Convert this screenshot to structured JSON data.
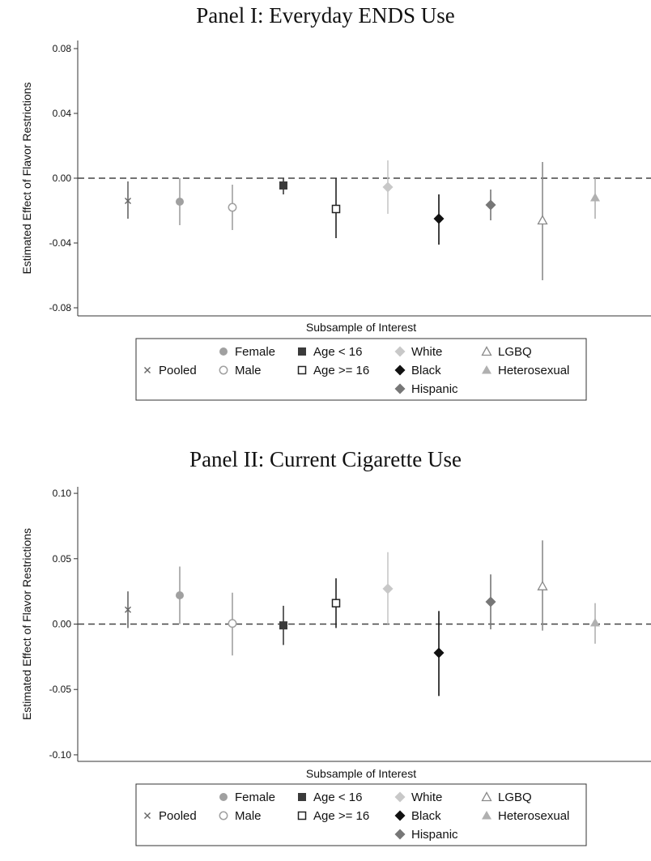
{
  "chart_data": [
    {
      "type": "scatter",
      "title": "Panel I: Everyday ENDS Use",
      "xlabel": "Subsample of Interest",
      "ylabel": "Estimated Effect of Flavor Restrictions",
      "ylim": [
        -0.085,
        0.085
      ],
      "yticks": [
        0.08,
        0.04,
        0.0,
        -0.04,
        -0.08
      ],
      "ytick_labels": [
        "0.08",
        "0.04",
        "0.00",
        "-0.04",
        "-0.08"
      ],
      "reference_line": 0,
      "grid": false,
      "legend_position": "bottom",
      "series": [
        {
          "name": "Pooled",
          "marker": "x",
          "color": "#666666",
          "estimate": -0.014,
          "ci": [
            -0.025,
            -0.002
          ]
        },
        {
          "name": "Female",
          "marker": "circle-filled",
          "color": "#a0a0a0",
          "estimate": -0.0145,
          "ci": [
            -0.029,
            0.0
          ]
        },
        {
          "name": "Male",
          "marker": "circle-open",
          "color": "#a0a0a0",
          "estimate": -0.018,
          "ci": [
            -0.032,
            -0.004
          ]
        },
        {
          "name": "Age < 16",
          "marker": "square-filled",
          "color": "#3a3a3a",
          "estimate": -0.0045,
          "ci": [
            -0.01,
            0.0
          ]
        },
        {
          "name": "Age >= 16",
          "marker": "square-open",
          "color": "#222222",
          "estimate": -0.019,
          "ci": [
            -0.037,
            0.0
          ]
        },
        {
          "name": "White",
          "marker": "diamond-filled",
          "color": "#c8c8c8",
          "estimate": -0.0055,
          "ci": [
            -0.022,
            0.011
          ]
        },
        {
          "name": "Black",
          "marker": "diamond-filled",
          "color": "#111111",
          "estimate": -0.025,
          "ci": [
            -0.041,
            -0.01
          ]
        },
        {
          "name": "Hispanic",
          "marker": "diamond-filled",
          "color": "#777777",
          "estimate": -0.0165,
          "ci": [
            -0.026,
            -0.007
          ]
        },
        {
          "name": "LGBQ",
          "marker": "triangle-open",
          "color": "#8a8a8a",
          "estimate": -0.026,
          "ci": [
            -0.063,
            0.01
          ]
        },
        {
          "name": "Heterosexual",
          "marker": "triangle-filled",
          "color": "#b0b0b0",
          "estimate": -0.012,
          "ci": [
            -0.025,
            0.0
          ]
        }
      ]
    },
    {
      "type": "scatter",
      "title": "Panel II: Current Cigarette Use",
      "xlabel": "Subsample of Interest",
      "ylabel": "Estimated Effect of Flavor Restrictions",
      "ylim": [
        -0.105,
        0.105
      ],
      "yticks": [
        0.1,
        0.05,
        0.0,
        -0.05,
        -0.1
      ],
      "ytick_labels": [
        "0.10",
        "0.05",
        "0.00",
        "-0.05",
        "-0.10"
      ],
      "reference_line": 0,
      "grid": false,
      "legend_position": "bottom",
      "series": [
        {
          "name": "Pooled",
          "marker": "x",
          "color": "#666666",
          "estimate": 0.011,
          "ci": [
            -0.003,
            0.025
          ]
        },
        {
          "name": "Female",
          "marker": "circle-filled",
          "color": "#a0a0a0",
          "estimate": 0.022,
          "ci": [
            0.0,
            0.044
          ]
        },
        {
          "name": "Male",
          "marker": "circle-open",
          "color": "#a0a0a0",
          "estimate": 0.0005,
          "ci": [
            -0.024,
            0.024
          ]
        },
        {
          "name": "Age < 16",
          "marker": "square-filled",
          "color": "#3a3a3a",
          "estimate": -0.001,
          "ci": [
            -0.016,
            0.014
          ]
        },
        {
          "name": "Age >= 16",
          "marker": "square-open",
          "color": "#222222",
          "estimate": 0.016,
          "ci": [
            -0.003,
            0.035
          ]
        },
        {
          "name": "White",
          "marker": "diamond-filled",
          "color": "#c8c8c8",
          "estimate": 0.027,
          "ci": [
            0.0,
            0.055
          ]
        },
        {
          "name": "Black",
          "marker": "diamond-filled",
          "color": "#111111",
          "estimate": -0.022,
          "ci": [
            -0.055,
            0.01
          ]
        },
        {
          "name": "Hispanic",
          "marker": "diamond-filled",
          "color": "#777777",
          "estimate": 0.017,
          "ci": [
            -0.004,
            0.038
          ]
        },
        {
          "name": "LGBQ",
          "marker": "triangle-open",
          "color": "#8a8a8a",
          "estimate": 0.029,
          "ci": [
            -0.005,
            0.064
          ]
        },
        {
          "name": "Heterosexual",
          "marker": "triangle-filled",
          "color": "#b0b0b0",
          "estimate": 0.001,
          "ci": [
            -0.015,
            0.016
          ]
        }
      ]
    }
  ]
}
